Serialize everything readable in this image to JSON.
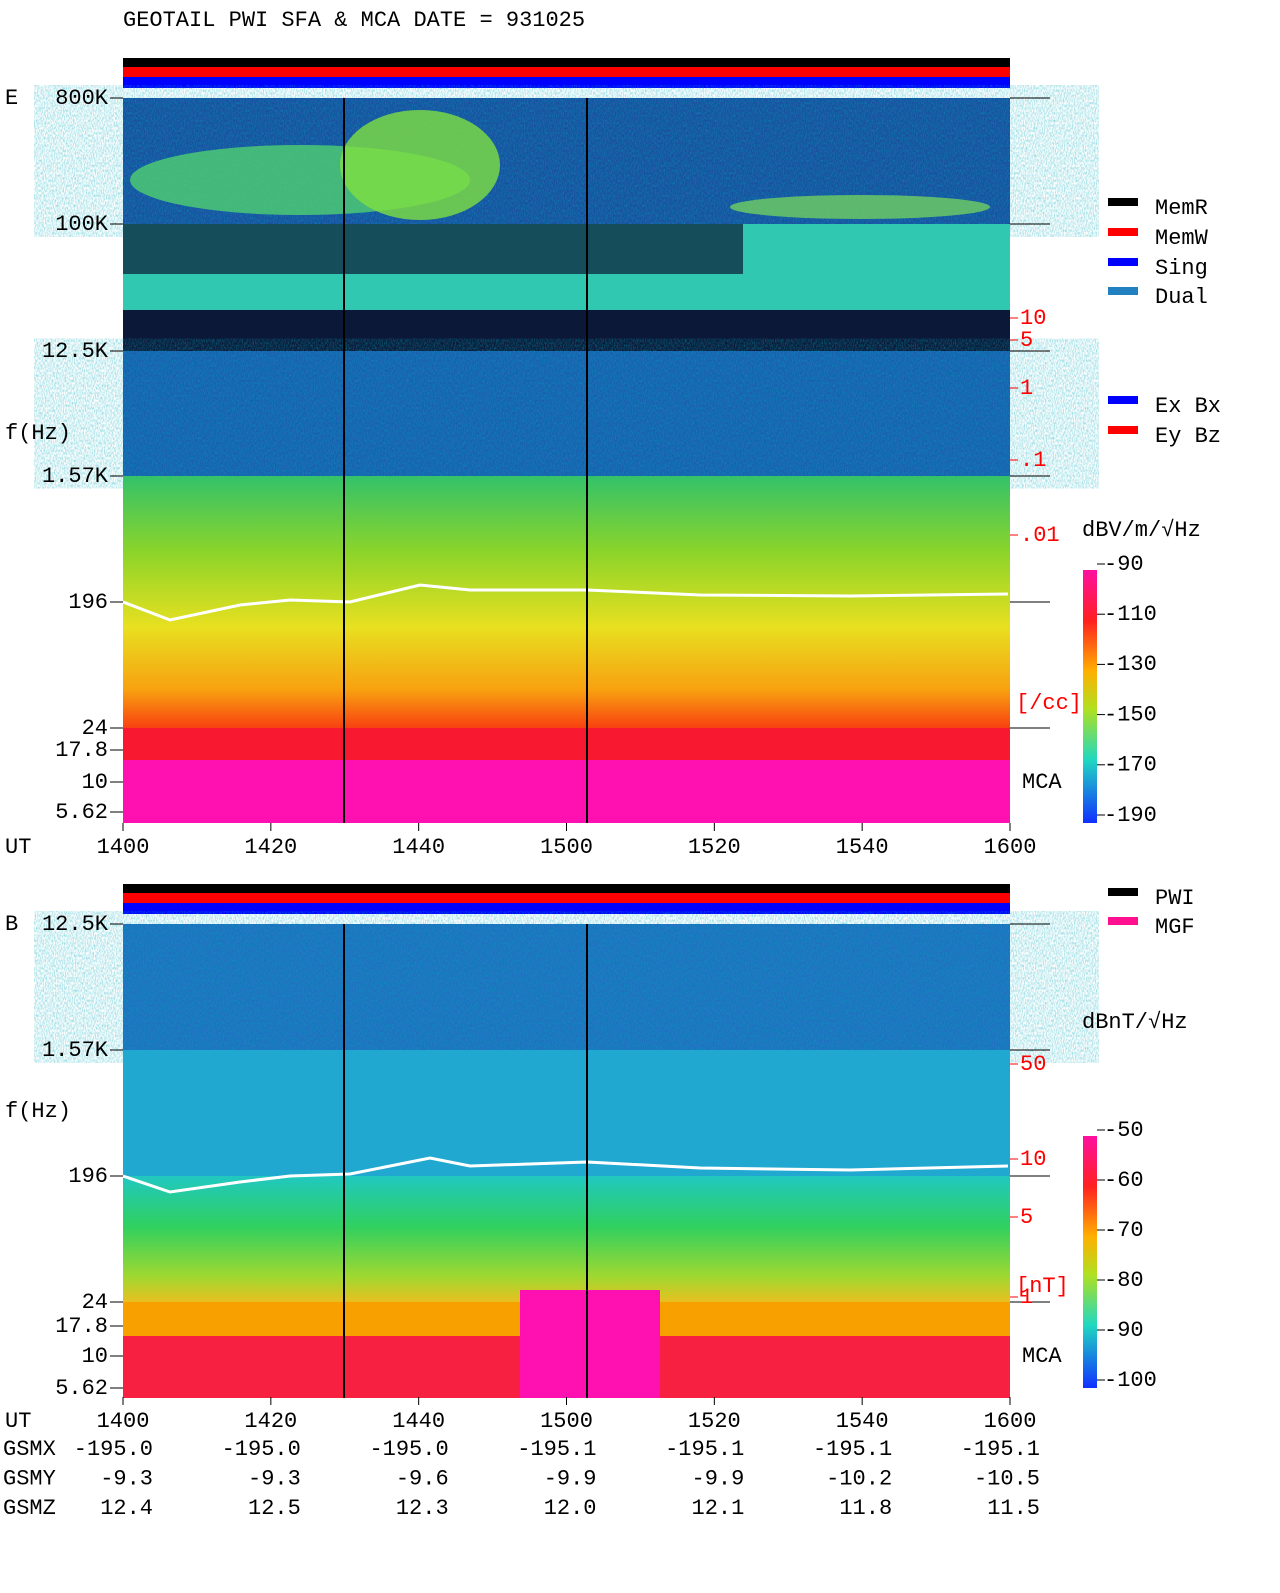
{
  "header": {
    "title": "GEOTAIL  PWI SFA & MCA   DATE = 931025"
  },
  "legend_top": [
    "MemR",
    "MemW",
    "Sing",
    "Dual"
  ],
  "legend_mid": [
    "Ex Bx",
    "Ey Bz"
  ],
  "legend_bottom": [
    "PWI",
    "MGF"
  ],
  "panels": [
    {
      "label": "E",
      "ylabel": "f(Hz)",
      "yticks": [
        "800K",
        "100K",
        "12.5K",
        "1.57K",
        "196",
        "24",
        "17.8",
        "10",
        "5.62"
      ],
      "right_scale": [
        "10",
        "5",
        "1",
        ".1",
        ".01"
      ],
      "right_unit": "[/cc]",
      "mca": "MCA",
      "colorbar_unit": "dBV/m/√Hz",
      "colorbar_ticks": [
        -90,
        -110,
        -130,
        -150,
        -170,
        -190
      ],
      "xlabel": "UT",
      "xticks": [
        "1400",
        "1420",
        "1440",
        "1500",
        "1520",
        "1540",
        "1600"
      ]
    },
    {
      "label": "B",
      "ylabel": "f(Hz)",
      "yticks": [
        "12.5K",
        "1.57K",
        "196",
        "24",
        "17.8",
        "10",
        "5.62"
      ],
      "right_scale": [
        "50",
        "10",
        "5",
        "1"
      ],
      "right_unit": "[nT]",
      "mca": "MCA",
      "colorbar_unit": "dBnT/√Hz",
      "colorbar_ticks": [
        -50,
        -60,
        -70,
        -80,
        -90,
        -100
      ],
      "xlabel": "UT",
      "xticks": [
        "1400",
        "1420",
        "1440",
        "1500",
        "1520",
        "1540",
        "1600"
      ]
    }
  ],
  "orbit": {
    "rows": [
      {
        "label": "GSMX",
        "values": [
          "-195.0",
          "-195.0",
          "-195.0",
          "-195.1",
          "-195.1",
          "-195.1",
          "-195.1"
        ]
      },
      {
        "label": "GSMY",
        "values": [
          "-9.3",
          "-9.3",
          "-9.6",
          "-9.9",
          "-9.9",
          "-10.2",
          "-10.5"
        ]
      },
      {
        "label": "GSMZ",
        "values": [
          "12.4",
          "12.5",
          "12.3",
          "12.0",
          "12.1",
          "11.8",
          "11.5"
        ]
      }
    ]
  }
}
